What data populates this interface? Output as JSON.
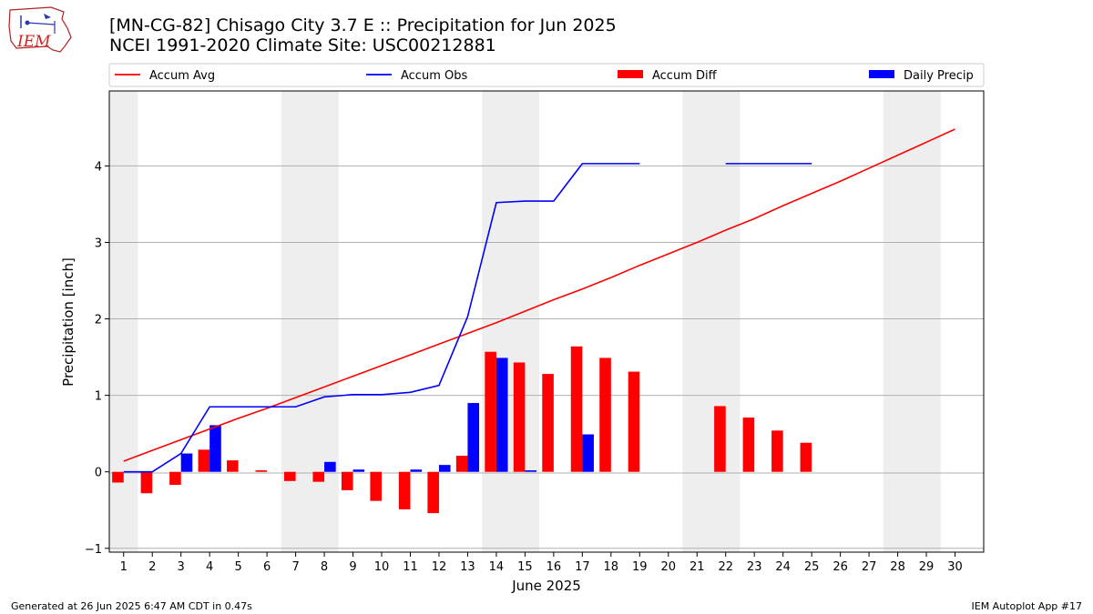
{
  "header": {
    "title_line1": "[MN-CG-82] Chisago City 3.7 E :: Precipitation for Jun 2025",
    "title_line2": "NCEI 1991-2020 Climate Site: USC00212881",
    "logo_text": "IEM"
  },
  "footer": {
    "left": "Generated at 26 Jun 2025 6:47 AM CDT in 0.47s",
    "right": "IEM Autoplot App #17"
  },
  "colors": {
    "accum_avg": "#ff0000",
    "accum_obs": "#0000ff",
    "accum_diff": "#ff0000",
    "daily_precip": "#0000ff",
    "weekend_band": "#eeeeee",
    "grid": "#b0b0b0"
  },
  "chart_data": {
    "type": "bar",
    "xlabel": "June 2025",
    "ylabel": "Precipitation [inch]",
    "xlim": [
      0.5,
      31.0
    ],
    "ylim": [
      -1.05,
      4.98
    ],
    "yticks": [
      -1,
      0,
      1,
      2,
      3,
      4
    ],
    "grid": "horizontal",
    "legend": [
      "Accum Avg",
      "Accum Obs",
      "Accum Diff",
      "Daily Precip"
    ],
    "legend_placement": "top",
    "weekend_bands": [
      [
        0.5,
        1.5
      ],
      [
        6.5,
        8.5
      ],
      [
        13.5,
        15.5
      ],
      [
        20.5,
        22.5
      ],
      [
        27.5,
        29.5
      ]
    ],
    "days": [
      1,
      2,
      3,
      4,
      5,
      6,
      7,
      8,
      9,
      10,
      11,
      12,
      13,
      14,
      15,
      16,
      17,
      18,
      19,
      20,
      21,
      22,
      23,
      24,
      25,
      26,
      27,
      28,
      29,
      30
    ],
    "accum_avg": [
      0.14,
      0.28,
      0.42,
      0.56,
      0.7,
      0.83,
      0.97,
      1.11,
      1.25,
      1.39,
      1.53,
      1.67,
      1.81,
      1.95,
      2.1,
      2.25,
      2.39,
      2.54,
      2.7,
      2.85,
      3.0,
      3.16,
      3.31,
      3.48,
      3.64,
      3.8,
      3.97,
      4.14,
      4.31,
      4.48
    ],
    "accum_obs": [
      0.0,
      0.0,
      0.24,
      0.85,
      0.85,
      0.85,
      0.85,
      0.98,
      1.01,
      1.01,
      1.04,
      1.13,
      2.03,
      3.52,
      3.54,
      3.54,
      4.03,
      4.03,
      4.03,
      null,
      null,
      4.03,
      4.03,
      4.03,
      4.03,
      null,
      null,
      null,
      null,
      null
    ],
    "accum_diff": [
      -0.14,
      -0.28,
      -0.17,
      0.29,
      0.15,
      0.02,
      -0.12,
      -0.13,
      -0.24,
      -0.38,
      -0.49,
      -0.54,
      0.21,
      1.57,
      1.43,
      1.28,
      1.64,
      1.49,
      1.31,
      null,
      null,
      0.86,
      0.71,
      0.54,
      0.38,
      null,
      null,
      null,
      null,
      null
    ],
    "daily_precip": [
      0.0,
      0.0,
      0.24,
      0.61,
      0.0,
      0.0,
      0.0,
      0.13,
      0.03,
      0.0,
      0.03,
      0.09,
      0.9,
      1.49,
      0.02,
      0.0,
      0.49,
      0.0,
      0.0,
      null,
      null,
      0.0,
      0.0,
      0.0,
      0.0,
      null,
      null,
      null,
      null,
      null
    ]
  }
}
